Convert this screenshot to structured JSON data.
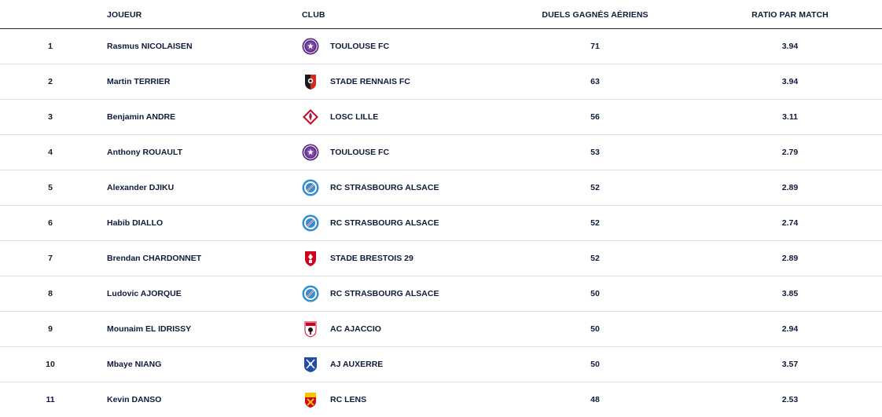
{
  "columns": {
    "joueur": "JOUEUR",
    "club": "CLUB",
    "duels": "DUELS GAGNÉS AÉRIENS",
    "ratio": "RATIO PAR MATCH"
  },
  "rows": [
    {
      "rank": "1",
      "player": "Rasmus NICOLAISEN",
      "club": "TOULOUSE FC",
      "logo": "toulouse-logo",
      "duels": "71",
      "ratio": "3.94"
    },
    {
      "rank": "2",
      "player": "Martin TERRIER",
      "club": "STADE RENNAIS FC",
      "logo": "rennes-logo",
      "duels": "63",
      "ratio": "3.94"
    },
    {
      "rank": "3",
      "player": "Benjamin ANDRE",
      "club": "LOSC LILLE",
      "logo": "lille-logo",
      "duels": "56",
      "ratio": "3.11"
    },
    {
      "rank": "4",
      "player": "Anthony ROUAULT",
      "club": "TOULOUSE FC",
      "logo": "toulouse-logo",
      "duels": "53",
      "ratio": "2.79"
    },
    {
      "rank": "5",
      "player": "Alexander DJIKU",
      "club": "RC STRASBOURG ALSACE",
      "logo": "strasbourg-logo",
      "duels": "52",
      "ratio": "2.89"
    },
    {
      "rank": "6",
      "player": "Habib DIALLO",
      "club": "RC STRASBOURG ALSACE",
      "logo": "strasbourg-logo",
      "duels": "52",
      "ratio": "2.74"
    },
    {
      "rank": "7",
      "player": "Brendan CHARDONNET",
      "club": "STADE BRESTOIS 29",
      "logo": "brest-logo",
      "duels": "52",
      "ratio": "2.89"
    },
    {
      "rank": "8",
      "player": "Ludovic AJORQUE",
      "club": "RC STRASBOURG ALSACE",
      "logo": "strasbourg-logo",
      "duels": "50",
      "ratio": "3.85"
    },
    {
      "rank": "9",
      "player": "Mounaim EL IDRISSY",
      "club": "AC AJACCIO",
      "logo": "ajaccio-logo",
      "duels": "50",
      "ratio": "2.94"
    },
    {
      "rank": "10",
      "player": "Mbaye NIANG",
      "club": "AJ AUXERRE",
      "logo": "auxerre-logo",
      "duels": "50",
      "ratio": "3.57"
    },
    {
      "rank": "11",
      "player": "Kevin DANSO",
      "club": "RC LENS",
      "logo": "lens-logo",
      "duels": "48",
      "ratio": "2.53"
    }
  ],
  "colors": {
    "text": "#0d1b3a",
    "header_border": "#1a2440",
    "row_border": "#dcdfe5",
    "toulouse": "#5b2c83",
    "rennes_red": "#d52b1e",
    "lille_red": "#c8102e",
    "strasbourg_blue": "#2f8fd0",
    "brest_red": "#d0021b",
    "auxerre_blue": "#1f4fa3",
    "lens_yellow": "#f5c400"
  }
}
